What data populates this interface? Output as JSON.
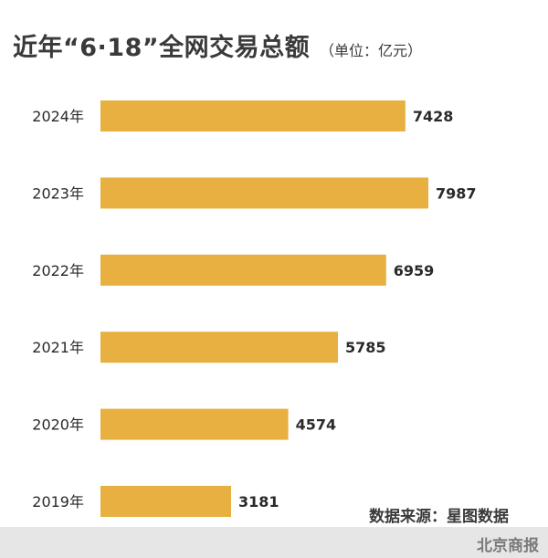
{
  "colors": {
    "bar": "#E8B040",
    "text": "#2a2a2a",
    "footer_band": "#e6e6e6",
    "brand": "#7a7a7a"
  },
  "chart_data": {
    "type": "bar",
    "orientation": "horizontal",
    "title": "近年“6·18”全网交易总额",
    "unit_label": "（单位：亿元）",
    "categories": [
      "2024年",
      "2023年",
      "2022年",
      "2021年",
      "2020年",
      "2019年"
    ],
    "values": [
      7428,
      7987,
      6959,
      5785,
      4574,
      3181
    ],
    "value_labels": [
      "7428",
      "7987",
      "6959",
      "5785",
      "4574",
      "3181"
    ],
    "xlim": [
      0,
      7987
    ],
    "grid": false,
    "legend": "none"
  },
  "source": "数据来源：星图数据",
  "brand": "北京商报"
}
